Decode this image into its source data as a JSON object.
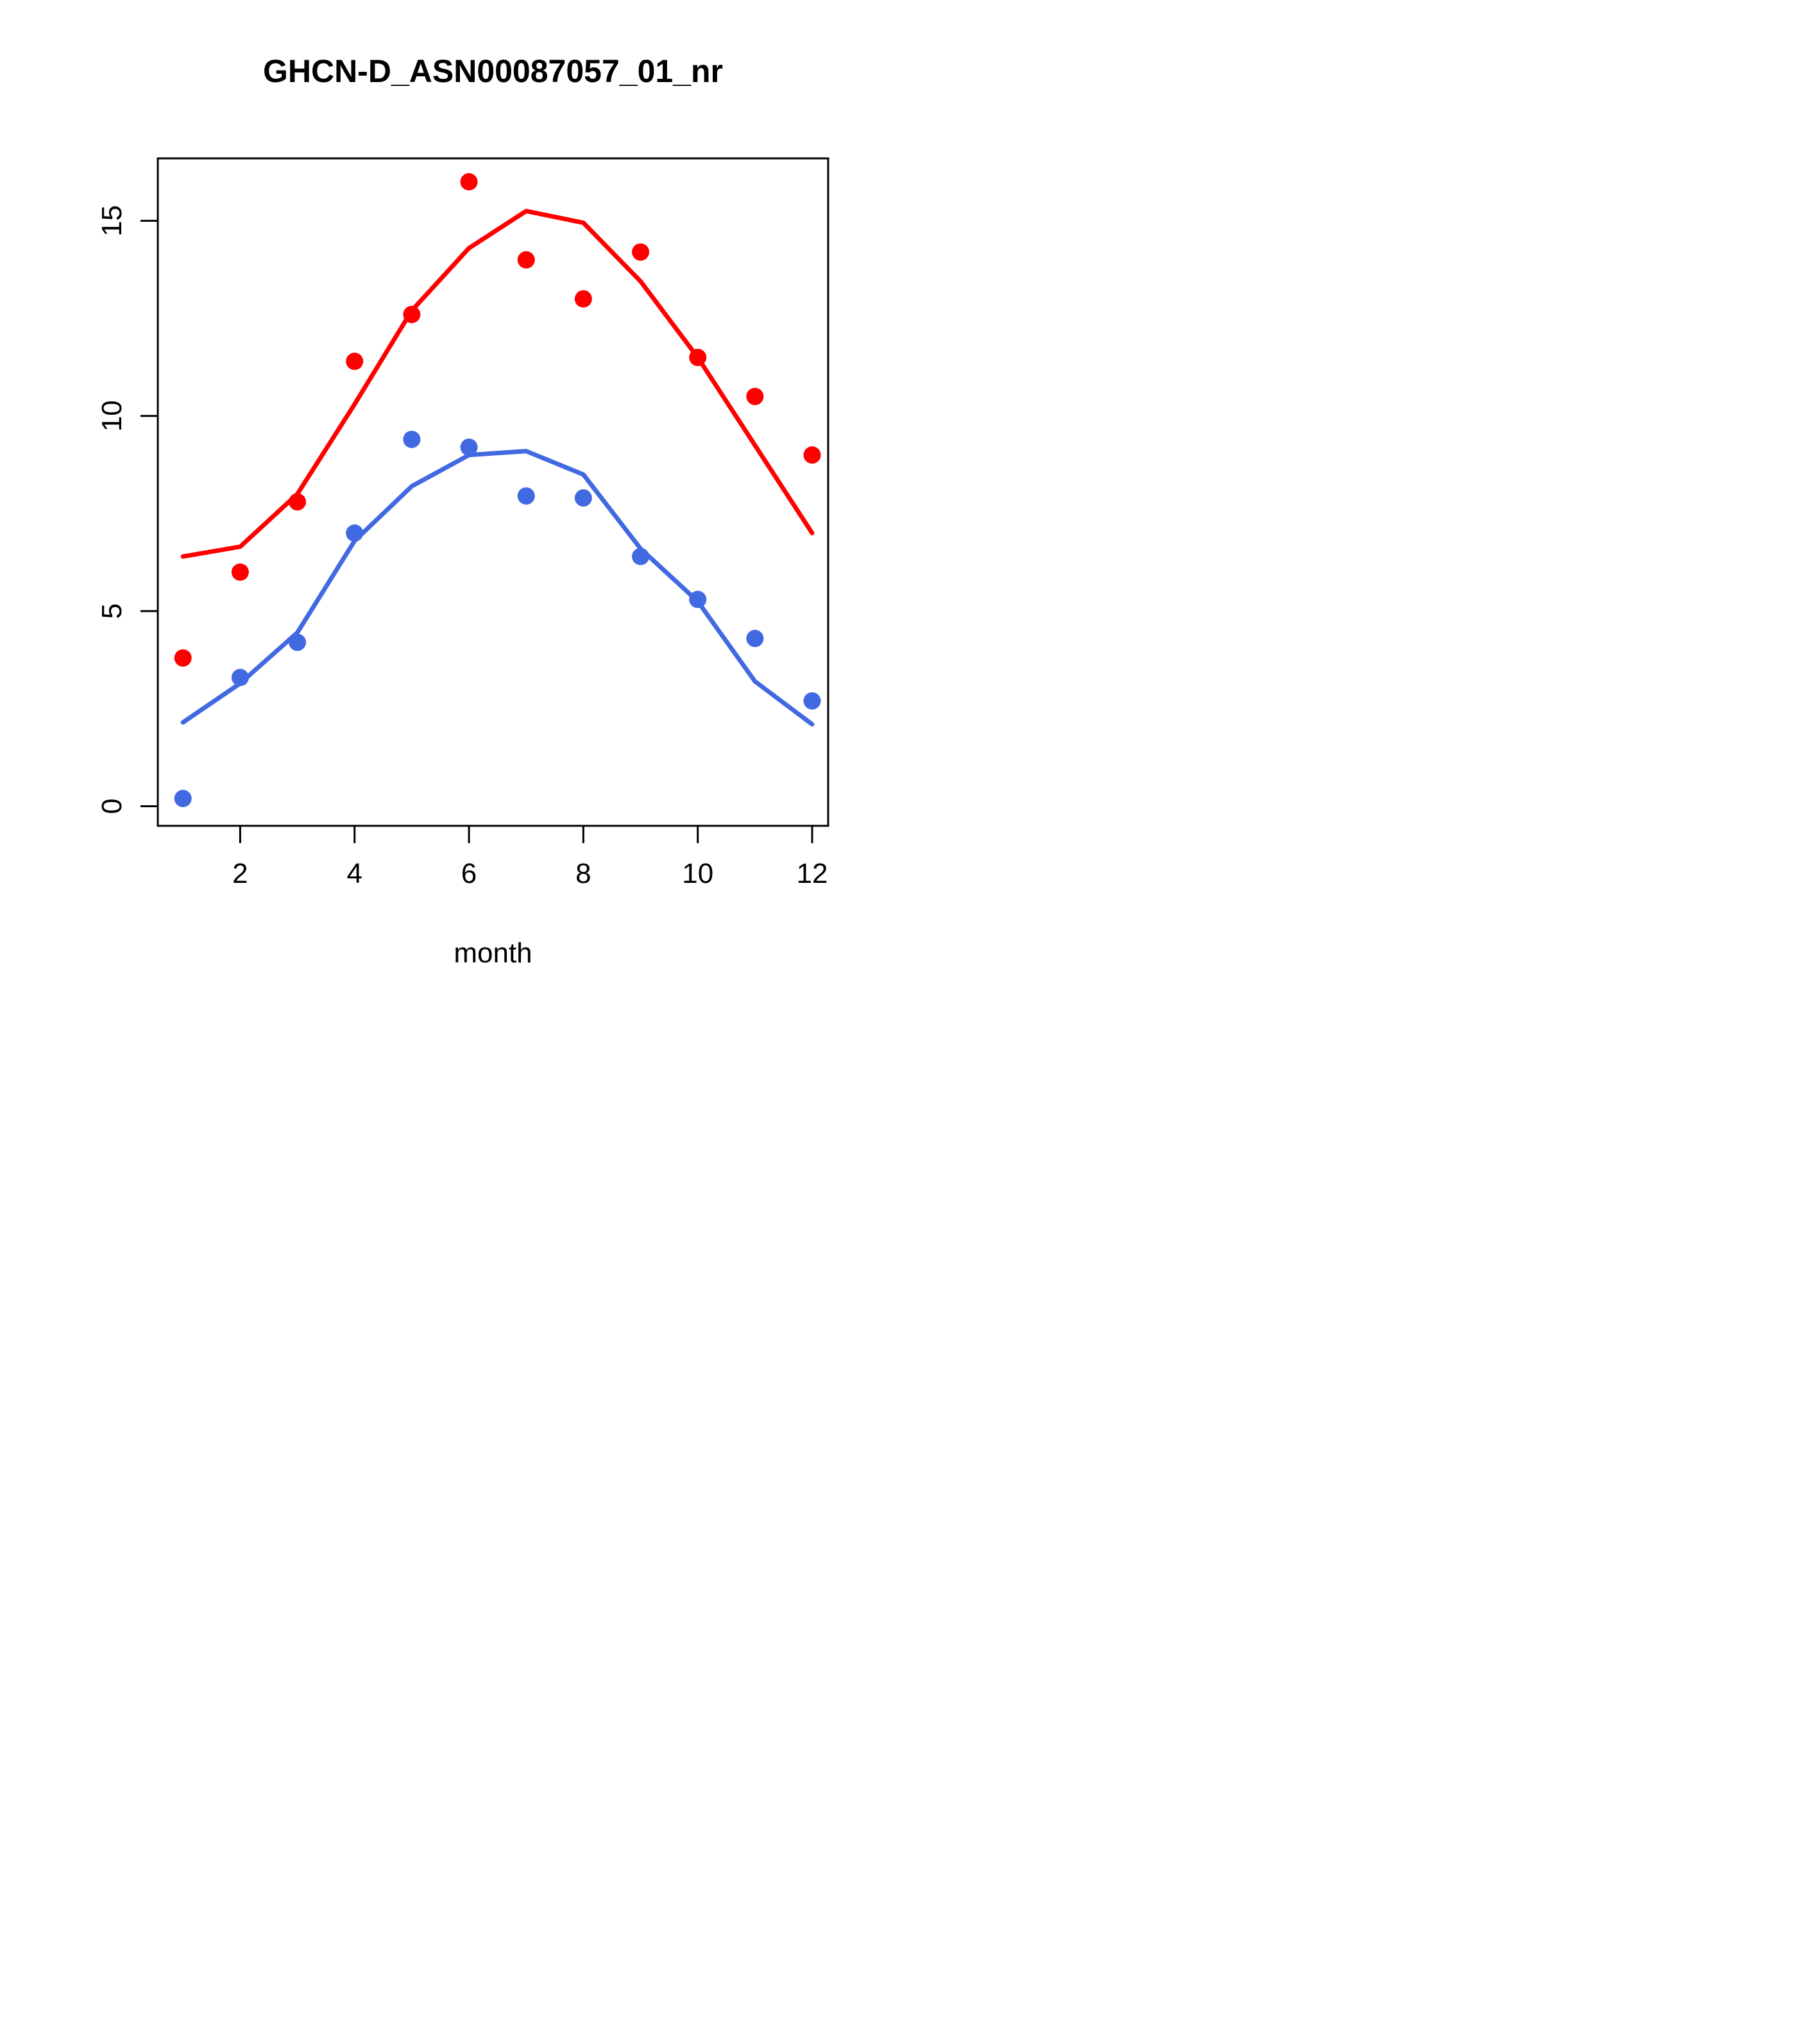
{
  "figure": {
    "title": "GHCN-D_ASN00087057_01_nr",
    "xlabel": "month"
  },
  "chart_data": {
    "type": "scatter",
    "title": "GHCN-D_ASN00087057_01_nr",
    "xlabel": "month",
    "ylabel": "",
    "x": [
      1,
      2,
      3,
      4,
      5,
      6,
      7,
      8,
      9,
      10,
      11,
      12
    ],
    "series": [
      {
        "name": "red-monthly-points",
        "kind": "points",
        "color": "#ff0000",
        "values": [
          3.8,
          6.0,
          7.8,
          11.4,
          12.6,
          16.0,
          14.0,
          13.0,
          14.2,
          11.5,
          10.5,
          9.0
        ]
      },
      {
        "name": "blue-monthly-points",
        "kind": "points",
        "color": "#4169e1",
        "values": [
          0.2,
          3.3,
          4.2,
          7.0,
          9.4,
          9.2,
          7.95,
          7.9,
          6.4,
          5.3,
          4.3,
          2.7
        ]
      },
      {
        "name": "red-fit-line",
        "kind": "line",
        "color": "#ff0000",
        "values": [
          6.4,
          6.65,
          8.0,
          10.3,
          12.7,
          14.3,
          15.25,
          14.95,
          13.45,
          11.5,
          9.25,
          7.0
        ]
      },
      {
        "name": "blue-fit-line",
        "kind": "line",
        "color": "#4169e1",
        "values": [
          2.15,
          3.15,
          4.45,
          6.8,
          8.2,
          9.0,
          9.1,
          8.5,
          6.6,
          5.25,
          3.2,
          2.1
        ]
      }
    ],
    "x_ticks": [
      2,
      4,
      6,
      8,
      10,
      12
    ],
    "y_ticks": [
      0,
      5,
      10,
      15
    ],
    "x_range": [
      0.56,
      12.28
    ],
    "y_range": [
      -0.5,
      16.6
    ],
    "grid": false,
    "legend_position": "none",
    "axis_color": "#000000",
    "background_color": "#ffffff"
  }
}
